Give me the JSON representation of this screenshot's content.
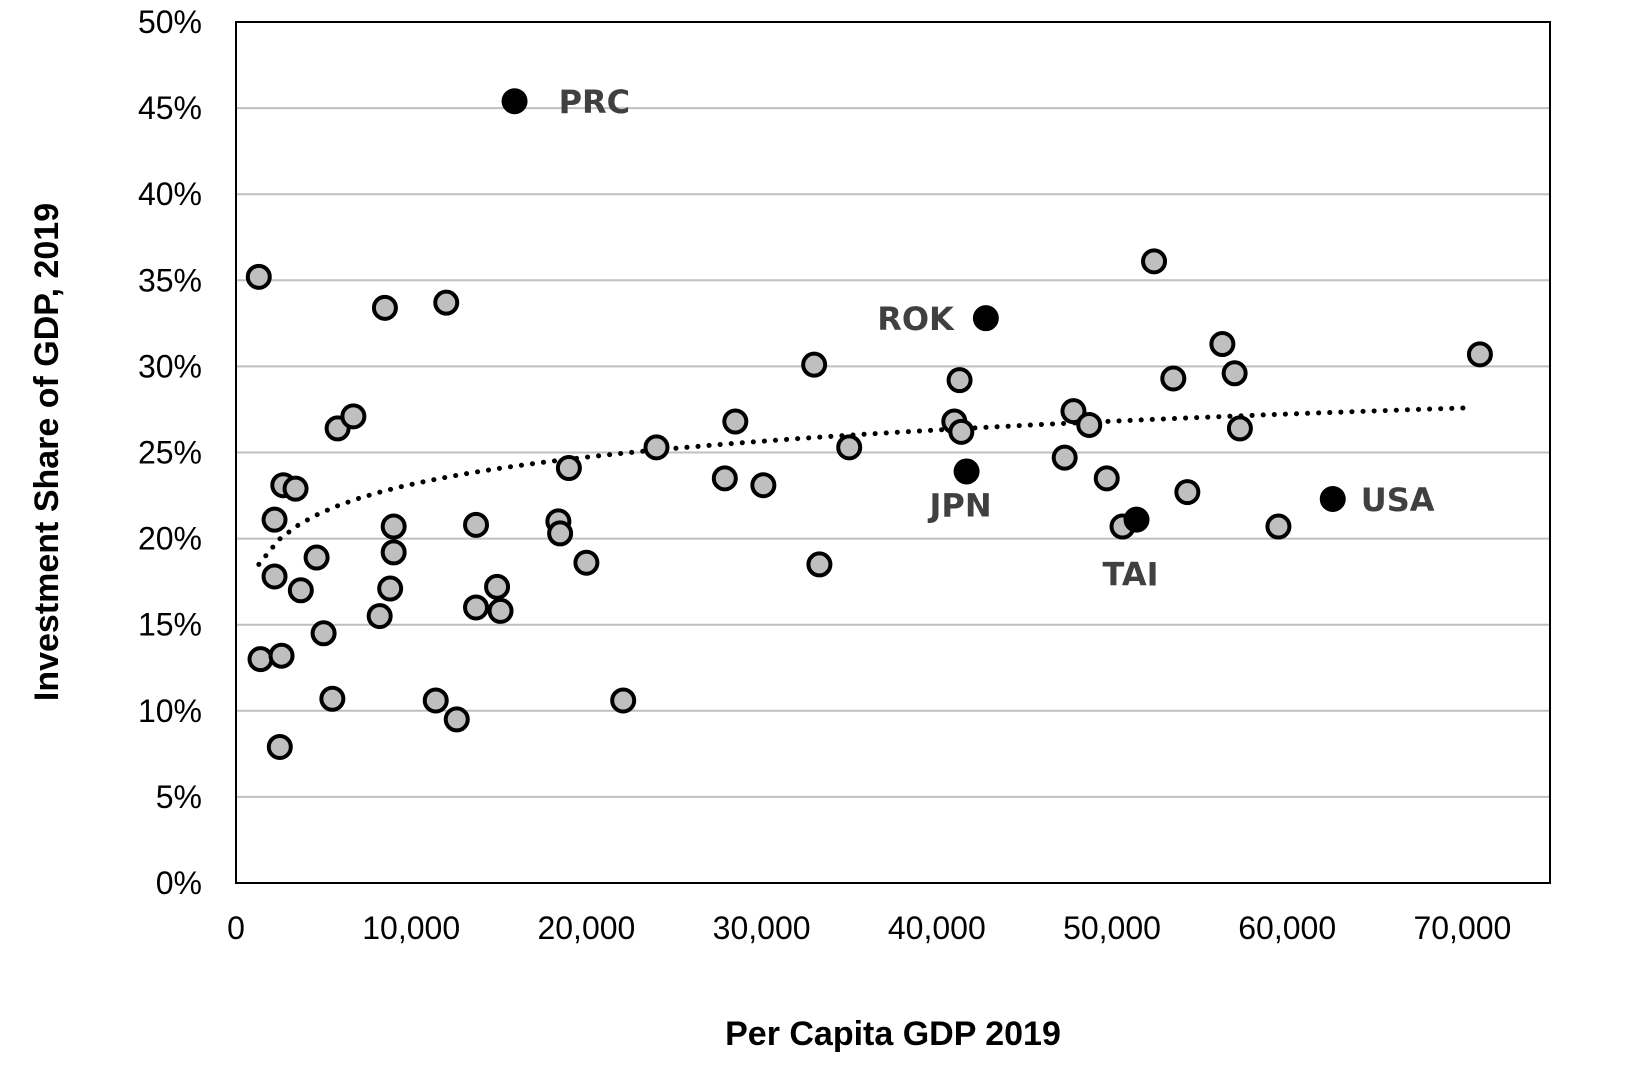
{
  "colors": {
    "point_fill": "#bfbfbf",
    "highlight_fill": "#000000",
    "gridline": "#bfbfbf",
    "trendline": "#000000",
    "highlight_label": "#404040"
  },
  "chart_data": {
    "type": "scatter",
    "title": "",
    "xlabel": "Per Capita GDP 2019",
    "ylabel": "Investment Share of GDP, 2019",
    "xlim": [
      0,
      75000
    ],
    "ylim": [
      0,
      50
    ],
    "x_ticks": [
      0,
      10000,
      20000,
      30000,
      40000,
      50000,
      60000,
      70000
    ],
    "x_tick_labels": [
      "0",
      "10,000",
      "20,000",
      "30,000",
      "40,000",
      "50,000",
      "60,000",
      "70,000"
    ],
    "y_ticks": [
      0,
      5,
      10,
      15,
      20,
      25,
      30,
      35,
      40,
      45,
      50
    ],
    "y_tick_labels": [
      "0%",
      "5%",
      "10%",
      "15%",
      "20%",
      "25%",
      "30%",
      "35%",
      "40%",
      "45%",
      "50%"
    ],
    "grid": "horizontal",
    "legend": "none",
    "series": [
      {
        "style": "gray-marker",
        "points": [
          [
            1300,
            35.2
          ],
          [
            1400,
            13.0
          ],
          [
            2200,
            21.1
          ],
          [
            2200,
            17.8
          ],
          [
            2500,
            7.9
          ],
          [
            2600,
            13.2
          ],
          [
            2700,
            23.1
          ],
          [
            3400,
            22.9
          ],
          [
            3700,
            17.0
          ],
          [
            4600,
            18.9
          ],
          [
            5000,
            14.5
          ],
          [
            5500,
            10.7
          ],
          [
            5800,
            26.4
          ],
          [
            6700,
            27.1
          ],
          [
            8200,
            15.5
          ],
          [
            8500,
            33.4
          ],
          [
            8800,
            17.1
          ],
          [
            9000,
            20.7
          ],
          [
            9000,
            19.2
          ],
          [
            11400,
            10.6
          ],
          [
            12000,
            33.7
          ],
          [
            12600,
            9.5
          ],
          [
            13700,
            20.8
          ],
          [
            13700,
            16.0
          ],
          [
            14900,
            17.2
          ],
          [
            15100,
            15.8
          ],
          [
            18400,
            21.0
          ],
          [
            18500,
            20.3
          ],
          [
            19000,
            24.1
          ],
          [
            20000,
            18.6
          ],
          [
            22100,
            10.6
          ],
          [
            24000,
            25.3
          ],
          [
            27900,
            23.5
          ],
          [
            28500,
            26.8
          ],
          [
            30100,
            23.1
          ],
          [
            33000,
            30.1
          ],
          [
            33300,
            18.5
          ],
          [
            35000,
            25.3
          ],
          [
            41000,
            26.8
          ],
          [
            41300,
            29.2
          ],
          [
            41400,
            26.2
          ],
          [
            47300,
            24.7
          ],
          [
            47800,
            27.4
          ],
          [
            48700,
            26.6
          ],
          [
            49700,
            23.5
          ],
          [
            50600,
            20.7
          ],
          [
            52400,
            36.1
          ],
          [
            53500,
            29.3
          ],
          [
            54300,
            22.7
          ],
          [
            56300,
            31.3
          ],
          [
            57000,
            29.6
          ],
          [
            57300,
            26.4
          ],
          [
            59500,
            20.7
          ],
          [
            71000,
            30.7
          ]
        ]
      },
      {
        "style": "highlight",
        "points": [
          {
            "label": "PRC",
            "x": 15900,
            "y": 45.4
          },
          {
            "label": "ROK",
            "x": 42800,
            "y": 32.8
          },
          {
            "label": "JPN",
            "x": 41700,
            "y": 23.9
          },
          {
            "label": "TAI",
            "x": 51400,
            "y": 21.1
          },
          {
            "label": "USA",
            "x": 62600,
            "y": 22.3
          }
        ]
      }
    ],
    "trendline": {
      "type": "log",
      "x_start": 1300,
      "x_end": 70500,
      "y_start": 18.5,
      "y_end": 27.6
    }
  }
}
